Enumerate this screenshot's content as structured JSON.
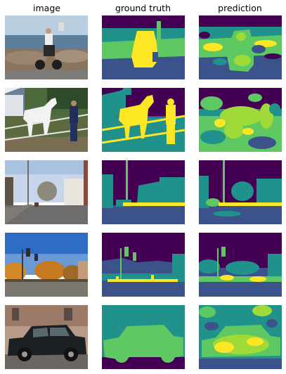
{
  "columns": [
    "image",
    "ground truth",
    "prediction"
  ],
  "rows": [
    {
      "image": "photo-man-on-motorbike-by-sea",
      "ground_truth": "segmentation-mask",
      "prediction": "segmentation-mask"
    },
    {
      "image": "photo-man-with-white-horse",
      "ground_truth": "segmentation-mask",
      "prediction": "segmentation-mask"
    },
    {
      "image": "photo-street-with-lamp-post",
      "ground_truth": "segmentation-mask",
      "prediction": "segmentation-mask"
    },
    {
      "image": "photo-street-with-traffic-lights-autumn",
      "ground_truth": "segmentation-mask",
      "prediction": "segmentation-mask"
    },
    {
      "image": "photo-dark-suv-parked",
      "ground_truth": "segmentation-mask",
      "prediction": "segmentation-mask"
    }
  ],
  "colors": {
    "purple": "#440154",
    "blue": "#3b528b",
    "teal": "#21918c",
    "green": "#5ec962",
    "yellow": "#fde725"
  }
}
